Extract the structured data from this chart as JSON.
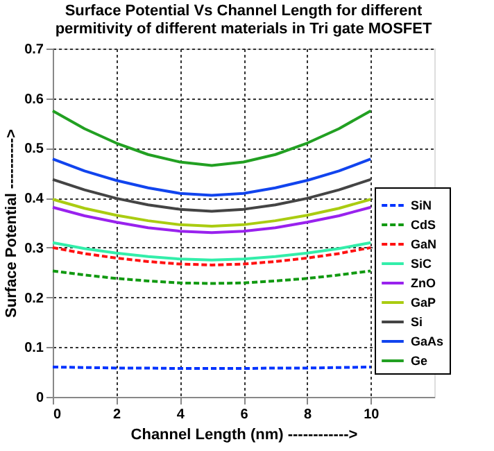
{
  "chart_data": {
    "type": "line",
    "title": [
      "Surface Potential Vs Channel Length for different",
      "permitivity of different materials in Tri gate MOSFET"
    ],
    "xlabel": "Channel Length (nm) ------------>",
    "ylabel": "Surface Potential ---------->",
    "x": [
      0,
      1,
      2,
      3,
      4,
      5,
      6,
      7,
      8,
      9,
      10
    ],
    "xlim": [
      0,
      12
    ],
    "xticks": [
      0,
      2,
      4,
      6,
      8,
      10
    ],
    "ylim": [
      0,
      0.7
    ],
    "yticks": [
      0,
      0.1,
      0.2,
      0.3,
      0.4,
      0.5,
      0.6,
      0.7
    ],
    "grid": true,
    "legend": "right",
    "series": [
      {
        "name": "SiN",
        "color": "#0033ff",
        "line_style": "dashed",
        "values": [
          0.06,
          0.059,
          0.058,
          0.058,
          0.057,
          0.057,
          0.057,
          0.058,
          0.058,
          0.059,
          0.06
        ]
      },
      {
        "name": "CdS",
        "color": "#119911",
        "line_style": "dashed",
        "values": [
          0.253,
          0.245,
          0.238,
          0.233,
          0.229,
          0.228,
          0.229,
          0.233,
          0.238,
          0.245,
          0.253
        ]
      },
      {
        "name": "GaN",
        "color": "#ff1111",
        "line_style": "dashed",
        "values": [
          0.3,
          0.288,
          0.279,
          0.272,
          0.267,
          0.265,
          0.267,
          0.272,
          0.279,
          0.288,
          0.3
        ]
      },
      {
        "name": "SiC",
        "color": "#33eeaa",
        "line_style": "solid",
        "values": [
          0.31,
          0.298,
          0.289,
          0.282,
          0.277,
          0.275,
          0.277,
          0.282,
          0.289,
          0.298,
          0.31
        ]
      },
      {
        "name": "ZnO",
        "color": "#9922ee",
        "line_style": "solid",
        "values": [
          0.381,
          0.364,
          0.351,
          0.34,
          0.333,
          0.33,
          0.333,
          0.34,
          0.351,
          0.364,
          0.381
        ]
      },
      {
        "name": "GaP",
        "color": "#aacc11",
        "line_style": "solid",
        "values": [
          0.397,
          0.379,
          0.365,
          0.354,
          0.346,
          0.343,
          0.346,
          0.354,
          0.365,
          0.379,
          0.397
        ]
      },
      {
        "name": "Si",
        "color": "#444444",
        "line_style": "solid",
        "values": [
          0.437,
          0.416,
          0.399,
          0.386,
          0.377,
          0.373,
          0.377,
          0.386,
          0.399,
          0.416,
          0.437
        ]
      },
      {
        "name": "GaAs",
        "color": "#1144ee",
        "line_style": "solid",
        "values": [
          0.478,
          0.454,
          0.435,
          0.42,
          0.409,
          0.405,
          0.409,
          0.42,
          0.435,
          0.454,
          0.478
        ]
      },
      {
        "name": "Ge",
        "color": "#22a022",
        "line_style": "solid",
        "values": [
          0.575,
          0.539,
          0.51,
          0.487,
          0.472,
          0.465,
          0.472,
          0.487,
          0.51,
          0.539,
          0.575
        ]
      }
    ]
  }
}
